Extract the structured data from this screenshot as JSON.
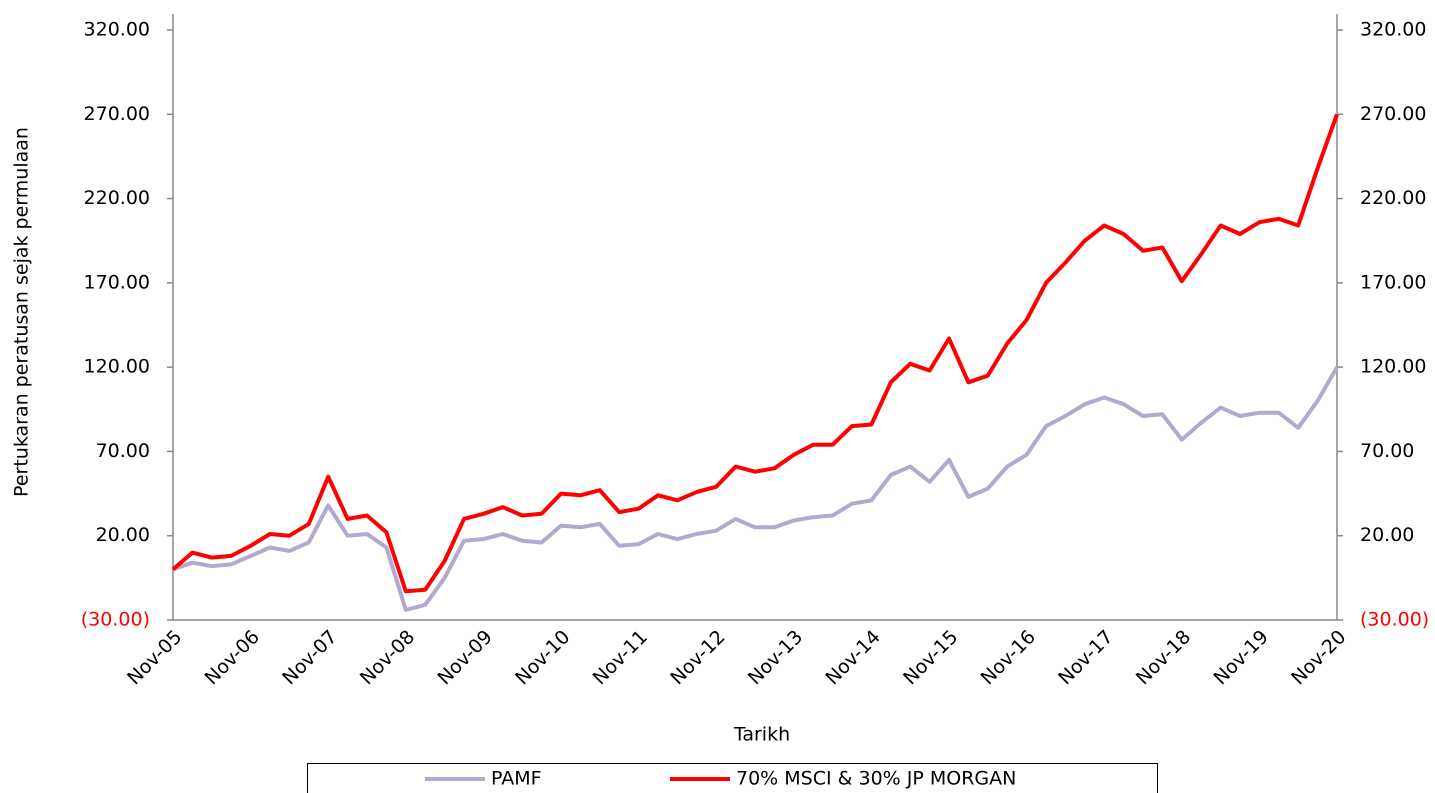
{
  "chart_data": {
    "type": "line",
    "ylabel": "Pertukaran peratusan sejak permulaan",
    "xlabel": "Tarikh",
    "categories": [
      "Nov-05",
      null,
      null,
      null,
      "Nov-06",
      null,
      null,
      null,
      "Nov-07",
      null,
      null,
      null,
      "Nov-08",
      null,
      null,
      null,
      "Nov-09",
      null,
      null,
      null,
      "Nov-10",
      null,
      null,
      null,
      "Nov-11",
      null,
      null,
      null,
      "Nov-12",
      null,
      null,
      null,
      "Nov-13",
      null,
      null,
      null,
      "Nov-14",
      null,
      null,
      null,
      "Nov-15",
      null,
      null,
      null,
      "Nov-16",
      null,
      null,
      null,
      "Nov-17",
      null,
      null,
      null,
      "Nov-18",
      null,
      null,
      null,
      "Nov-19",
      null,
      null,
      null,
      "Nov-20"
    ],
    "series": [
      {
        "name": "PAMF",
        "color": "#b3a8cf",
        "values": [
          0,
          4,
          2,
          3,
          8,
          13,
          11,
          16,
          38,
          20,
          21,
          13,
          -24,
          -21,
          -5,
          17,
          18,
          21,
          17,
          16,
          26,
          25,
          27,
          14,
          15,
          21,
          18,
          21,
          23,
          30,
          25,
          25,
          29,
          31,
          32,
          39,
          41,
          56,
          61,
          52,
          65,
          43,
          48,
          61,
          68,
          85,
          91,
          98,
          102,
          98,
          91,
          92,
          77,
          87,
          96,
          91,
          93,
          93,
          84,
          100,
          120
        ]
      },
      {
        "name": "70% MSCI & 30% JP MORGAN",
        "color": "#ff0000",
        "values": [
          0,
          10,
          7,
          8,
          14,
          21,
          20,
          27,
          55,
          30,
          32,
          22,
          -13,
          -12,
          5,
          30,
          33,
          37,
          32,
          33,
          45,
          44,
          47,
          34,
          36,
          44,
          41,
          46,
          49,
          61,
          58,
          60,
          68,
          74,
          74,
          85,
          86,
          111,
          122,
          118,
          137,
          111,
          115,
          134,
          148,
          170,
          182,
          195,
          204,
          199,
          189,
          191,
          171,
          187,
          204,
          199,
          206,
          208,
          204,
          238,
          270
        ]
      }
    ],
    "ylim": [
      -30,
      320
    ],
    "yticks": [
      {
        "value": -30,
        "label": "(30.00)"
      },
      {
        "value": 20,
        "label": "20.00"
      },
      {
        "value": 70,
        "label": "70.00"
      },
      {
        "value": 120,
        "label": "120.00"
      },
      {
        "value": 170,
        "label": "170.00"
      },
      {
        "value": 220,
        "label": "220.00"
      },
      {
        "value": 270,
        "label": "270.00"
      },
      {
        "value": 320,
        "label": "320.00"
      }
    ],
    "grid": false,
    "legend": "bottom"
  }
}
